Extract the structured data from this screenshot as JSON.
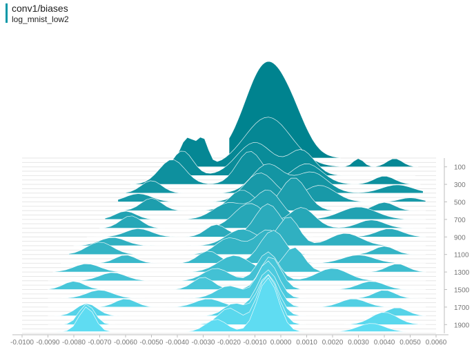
{
  "header": {
    "title": "conv1/biases",
    "run": "log_mnist_low2",
    "accent_color": "#0097a7"
  },
  "chart_data": {
    "type": "histogram-offset",
    "x_ticks": [
      "-0.0100",
      "-0.0090",
      "-0.0080",
      "-0.0070",
      "-0.0060",
      "-0.0050",
      "-0.0040",
      "-0.0030",
      "-0.0020",
      "-0.0010",
      "0.0000",
      "0.0010",
      "0.0020",
      "0.0030",
      "0.0040",
      "0.0050",
      "0.0060"
    ],
    "x_range": [
      -0.01,
      0.006
    ],
    "y_ticks": [
      "100",
      "300",
      "500",
      "700",
      "900",
      "1100",
      "1300",
      "1500",
      "1700",
      "1900"
    ],
    "step_range": [
      0,
      2000
    ],
    "color_old": "#00838f",
    "color_new": "#5fdcf2",
    "outline_color": "#ffffff",
    "series": [
      {
        "step": 0,
        "domain": [
          -0.002,
          0.0023
        ],
        "peaks": [
          [
            -0.0006,
            22,
            0.0008
          ],
          [
            0.0005,
            6,
            0.0006
          ]
        ]
      },
      {
        "step": 100,
        "domain": [
          -0.0046,
          0.0053
        ],
        "peaks": [
          [
            -0.0036,
            7,
            0.0003
          ],
          [
            -0.003,
            6,
            0.0002
          ],
          [
            -0.0005,
            12,
            0.0009
          ],
          [
            0.003,
            2,
            0.0002
          ],
          [
            0.0044,
            2,
            0.0003
          ]
        ]
      },
      {
        "step": 200,
        "domain": [
          -0.0047,
          0.0052
        ],
        "peaks": [
          [
            -0.0038,
            6,
            0.0004
          ],
          [
            -0.001,
            8,
            0.0007
          ],
          [
            0.0008,
            6,
            0.0005
          ]
        ]
      },
      {
        "step": 300,
        "domain": [
          -0.0058,
          0.0054
        ],
        "peaks": [
          [
            -0.0042,
            6,
            0.0005
          ],
          [
            -0.0012,
            8,
            0.0005
          ],
          [
            0.001,
            5,
            0.0006
          ],
          [
            0.004,
            2,
            0.0004
          ]
        ]
      },
      {
        "step": 400,
        "domain": [
          -0.006,
          0.0055
        ],
        "peaks": [
          [
            -0.005,
            3,
            0.0004
          ],
          [
            -0.0005,
            7,
            0.0006
          ],
          [
            0.0012,
            5,
            0.0006
          ],
          [
            0.0045,
            2,
            0.0006
          ]
        ]
      },
      {
        "step": 500,
        "domain": [
          -0.0063,
          0.0056
        ],
        "peaks": [
          [
            -0.0055,
            2,
            0.0005
          ],
          [
            -0.0008,
            7,
            0.0006
          ],
          [
            0.0015,
            4,
            0.0006
          ],
          [
            0.005,
            1,
            0.0004
          ]
        ]
      },
      {
        "step": 600,
        "domain": [
          -0.0064,
          0.0056
        ],
        "peaks": [
          [
            -0.005,
            3,
            0.0004
          ],
          [
            -0.0015,
            5,
            0.0005
          ],
          [
            0.0005,
            8,
            0.0005
          ],
          [
            0.004,
            2,
            0.0004
          ]
        ]
      },
      {
        "step": 700,
        "domain": [
          -0.0068,
          0.0056
        ],
        "peaks": [
          [
            -0.006,
            2,
            0.0004
          ],
          [
            -0.002,
            4,
            0.0006
          ],
          [
            -0.0005,
            7,
            0.0005
          ],
          [
            0.003,
            3,
            0.0007
          ]
        ]
      },
      {
        "step": 800,
        "domain": [
          -0.007,
          0.0056
        ],
        "peaks": [
          [
            -0.0058,
            3,
            0.0004
          ],
          [
            -0.0012,
            6,
            0.0006
          ],
          [
            0.0008,
            5,
            0.0005
          ],
          [
            0.0035,
            2,
            0.0005
          ]
        ]
      },
      {
        "step": 900,
        "domain": [
          -0.0075,
          0.0056
        ],
        "peaks": [
          [
            -0.0055,
            2,
            0.0005
          ],
          [
            -0.0025,
            3,
            0.0004
          ],
          [
            -0.0005,
            8,
            0.0005
          ],
          [
            0.0042,
            2,
            0.0005
          ]
        ]
      },
      {
        "step": 1000,
        "domain": [
          -0.008,
          0.0056
        ],
        "peaks": [
          [
            -0.0065,
            2,
            0.0005
          ],
          [
            -0.0015,
            4,
            0.0006
          ],
          [
            0.0003,
            7,
            0.0004
          ],
          [
            0.0025,
            3,
            0.0006
          ]
        ]
      },
      {
        "step": 1100,
        "domain": [
          -0.0082,
          0.0056
        ],
        "peaks": [
          [
            -0.007,
            3,
            0.0005
          ],
          [
            -0.002,
            4,
            0.0005
          ],
          [
            -0.0005,
            6,
            0.0005
          ],
          [
            0.004,
            2,
            0.0004
          ]
        ]
      },
      {
        "step": 1200,
        "domain": [
          -0.0085,
          0.0056
        ],
        "peaks": [
          [
            -0.006,
            2,
            0.0004
          ],
          [
            -0.0028,
            3,
            0.0004
          ],
          [
            -0.0003,
            8,
            0.0005
          ],
          [
            0.003,
            2,
            0.0006
          ]
        ]
      },
      {
        "step": 1300,
        "domain": [
          -0.0088,
          0.0056
        ],
        "peaks": [
          [
            -0.0075,
            2,
            0.0005
          ],
          [
            -0.0018,
            4,
            0.0006
          ],
          [
            0.0005,
            6,
            0.0004
          ],
          [
            0.0045,
            2,
            0.0004
          ]
        ]
      },
      {
        "step": 1400,
        "domain": [
          -0.009,
          0.0056
        ],
        "peaks": [
          [
            -0.0065,
            2,
            0.0005
          ],
          [
            -0.0025,
            3,
            0.0005
          ],
          [
            -0.0005,
            7,
            0.0004
          ],
          [
            0.002,
            3,
            0.0006
          ]
        ]
      },
      {
        "step": 1500,
        "domain": [
          -0.009,
          0.0056
        ],
        "peaks": [
          [
            -0.008,
            2,
            0.0004
          ],
          [
            -0.003,
            3,
            0.0004
          ],
          [
            -0.0004,
            8,
            0.0004
          ],
          [
            0.0035,
            2,
            0.0005
          ]
        ]
      },
      {
        "step": 1600,
        "domain": [
          -0.009,
          0.0056
        ],
        "peaks": [
          [
            -0.007,
            2,
            0.0005
          ],
          [
            -0.002,
            3,
            0.0005
          ],
          [
            -0.0005,
            9,
            0.0004
          ],
          [
            0.004,
            2,
            0.0004
          ]
        ]
      },
      {
        "step": 1700,
        "domain": [
          -0.009,
          0.0056
        ],
        "peaks": [
          [
            -0.006,
            2,
            0.0004
          ],
          [
            -0.0028,
            2,
            0.0005
          ],
          [
            -0.0005,
            9,
            0.0004
          ],
          [
            0.0028,
            2,
            0.0005
          ]
        ]
      },
      {
        "step": 1800,
        "domain": [
          -0.009,
          0.0056
        ],
        "peaks": [
          [
            -0.0075,
            3,
            0.0004
          ],
          [
            -0.0018,
            3,
            0.0004
          ],
          [
            -0.0005,
            10,
            0.0004
          ],
          [
            0.0045,
            2,
            0.0004
          ]
        ]
      },
      {
        "step": 1900,
        "domain": [
          -0.009,
          0.0056
        ],
        "peaks": [
          [
            -0.0075,
            5,
            0.0003
          ],
          [
            -0.002,
            4,
            0.0004
          ],
          [
            -0.0005,
            12,
            0.0004
          ],
          [
            0.004,
            3,
            0.0005
          ]
        ]
      },
      {
        "step": 1980,
        "domain": [
          -0.009,
          0.0056
        ],
        "peaks": [
          [
            -0.0075,
            6,
            0.0003
          ],
          [
            -0.0025,
            3,
            0.0004
          ],
          [
            -0.0005,
            13,
            0.0004
          ],
          [
            0.0035,
            2,
            0.0005
          ]
        ]
      }
    ]
  }
}
